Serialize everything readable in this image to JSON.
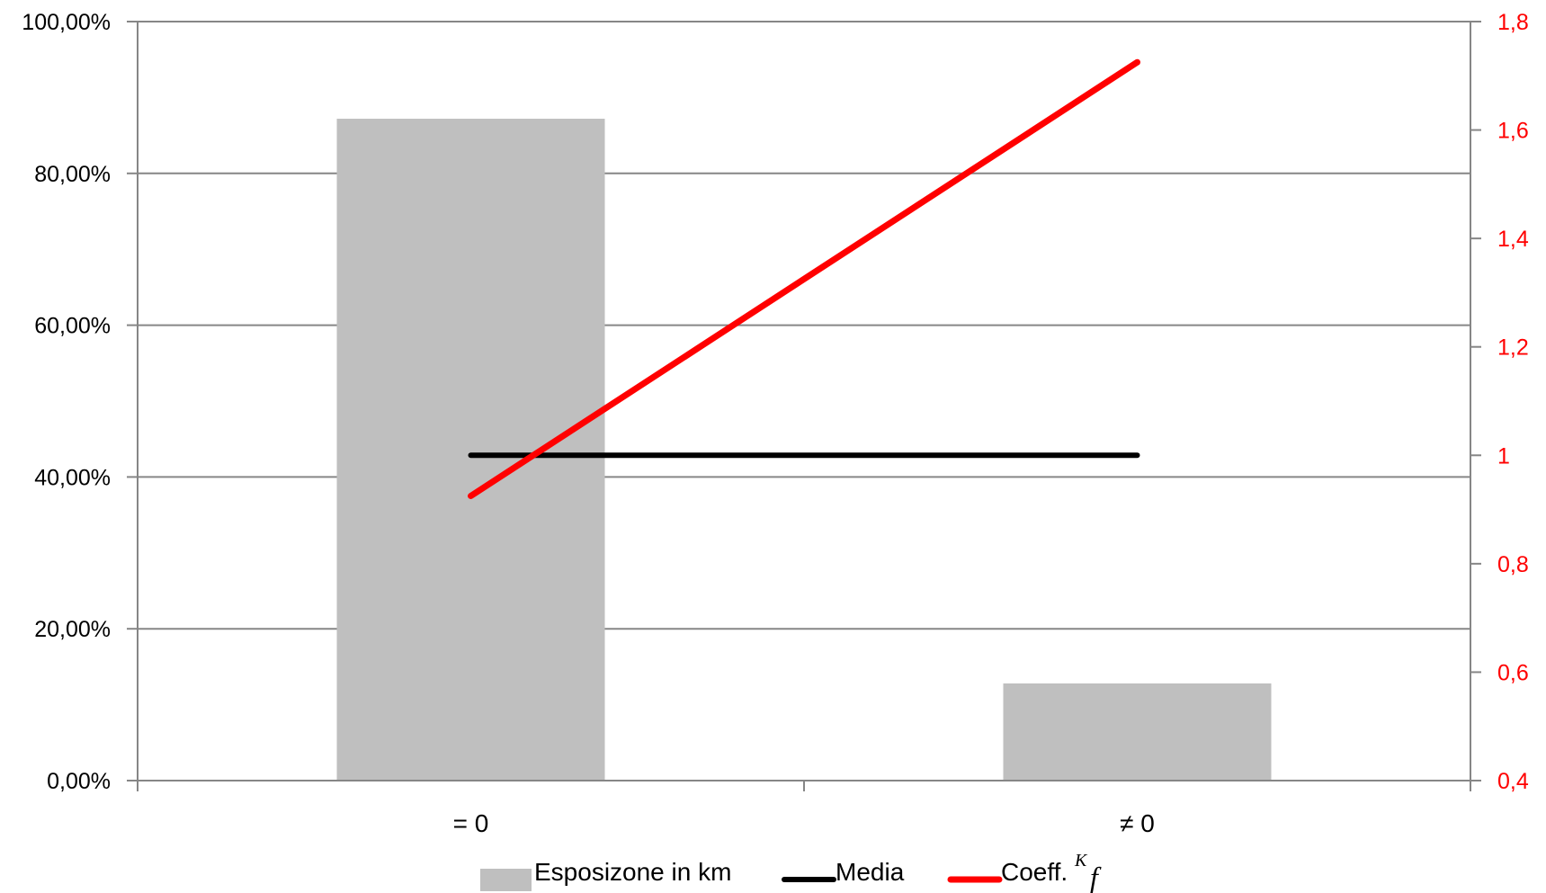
{
  "chart_data": {
    "type": "bar",
    "categories": [
      "= 0",
      "≠ 0"
    ],
    "series": [
      {
        "name": "Esposizone in km",
        "type": "bar",
        "axis": "left",
        "values": [
          87.2,
          12.8
        ]
      },
      {
        "name": "Media",
        "type": "line",
        "axis": "right",
        "values": [
          1.0,
          1.0
        ]
      },
      {
        "name": "Coeff.",
        "type": "line",
        "axis": "right",
        "values": [
          0.925,
          1.725
        ]
      }
    ],
    "legend_sup": "K",
    "legend_f": "f",
    "y_left": {
      "ylim": [
        0,
        100
      ],
      "ticks": [
        0,
        20,
        40,
        60,
        80,
        100
      ],
      "tick_labels": [
        "0,00%",
        "20,00%",
        "40,00%",
        "60,00%",
        "80,00%",
        "100,00%"
      ]
    },
    "y_right": {
      "ylim": [
        0.4,
        1.8
      ],
      "ticks": [
        0.4,
        0.6,
        0.8,
        1.0,
        1.2,
        1.4,
        1.6,
        1.8
      ],
      "tick_labels": [
        "0,4",
        "0,6",
        "0,8",
        "1",
        "1,2",
        "1,4",
        "1,6",
        "1,8"
      ],
      "color": "#ff0000"
    },
    "grid": true,
    "legend_position": "bottom",
    "colors": {
      "bar": "#bfbfbf",
      "media": "#000000",
      "coeff": "#ff0000",
      "grid": "#868686",
      "axis": "#868686"
    }
  }
}
